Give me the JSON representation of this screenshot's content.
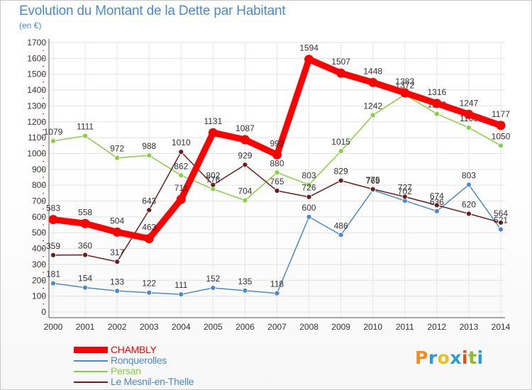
{
  "title": "Evolution du Montant de la Dette par Habitant",
  "unit": "(en €)",
  "logo": "Proxiti",
  "chart_data": {
    "type": "line",
    "x": [
      2000,
      2001,
      2002,
      2003,
      2004,
      2005,
      2006,
      2007,
      2008,
      2009,
      2010,
      2011,
      2012,
      2013,
      2014
    ],
    "ylim": [
      0,
      1700
    ],
    "yticks": [
      0,
      100,
      200,
      300,
      400,
      500,
      600,
      700,
      800,
      900,
      1000,
      1100,
      1200,
      1300,
      1400,
      1500,
      1600,
      1700
    ],
    "grid": true,
    "legend": "bottom-left",
    "series": [
      {
        "name": "CHAMBLY",
        "color": "#ff0000",
        "values": [
          583,
          558,
          504,
          463,
          711,
          1131,
          1087,
          992,
          1594,
          1507,
          1448,
          1383,
          1316,
          1247,
          1177
        ]
      },
      {
        "name": "Ronquerolles",
        "color": "#4a8ac8",
        "values": [
          181,
          154,
          133,
          122,
          111,
          152,
          135,
          118,
          600,
          486,
          769,
          702,
          636,
          803,
          521
        ]
      },
      {
        "name": "Persan",
        "color": "#88d040",
        "values": [
          1079,
          1111,
          972,
          988,
          862,
          776,
          704,
          880,
          803,
          1015,
          1242,
          1372,
          1250,
          1163,
          1050
        ]
      },
      {
        "name": "Le Mesnil-en-Thelle",
        "color": "#6a1d1d",
        "values": [
          359,
          360,
          317,
          643,
          1010,
          802,
          929,
          765,
          726,
          829,
          775,
          727,
          674,
          620,
          564
        ]
      }
    ]
  }
}
